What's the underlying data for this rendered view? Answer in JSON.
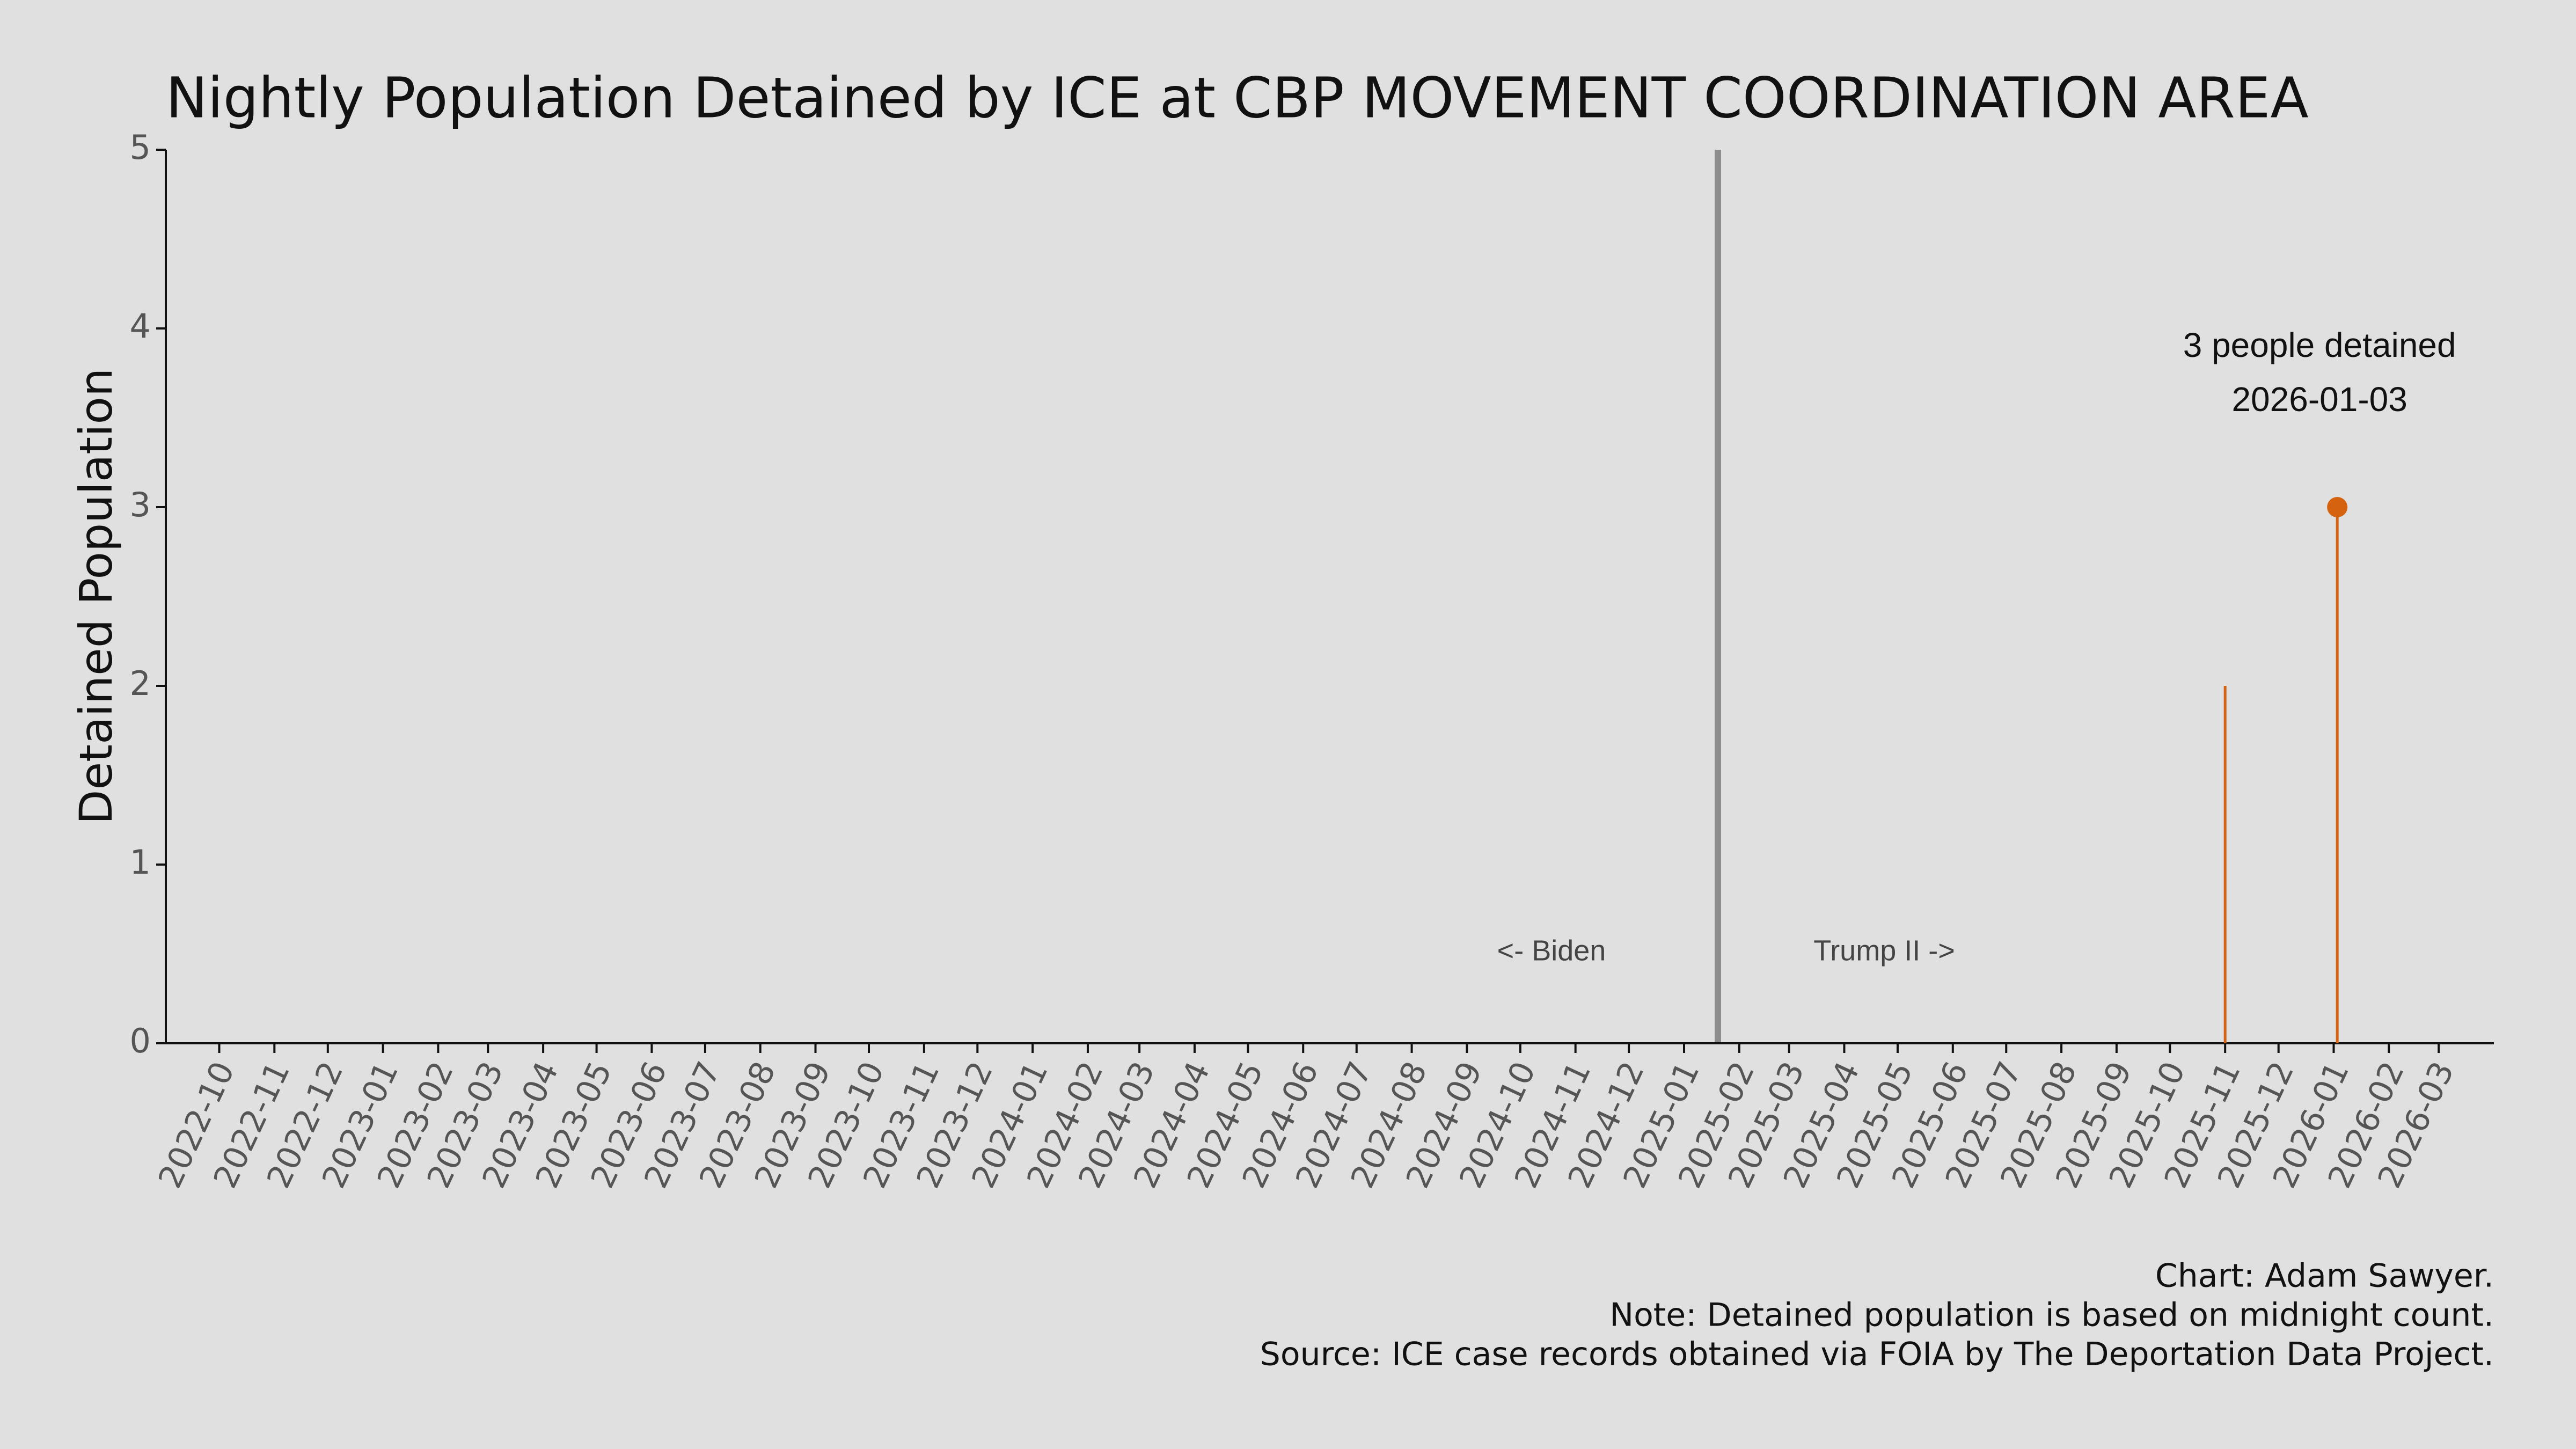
{
  "chart_data": {
    "type": "stem",
    "title": "Nightly Population Detained by ICE at CBP MOVEMENT COORDINATION AREA",
    "y_label": "Detained Population",
    "x": [
      "2025-11",
      "2026-01-03"
    ],
    "values": [
      2,
      3
    ],
    "color": "#d4620f",
    "xlim": [
      "2022-09",
      "2026-04"
    ],
    "xticks": [
      "2022-10",
      "2022-11",
      "2022-12",
      "2023-01",
      "2023-02",
      "2023-03",
      "2023-04",
      "2023-05",
      "2023-06",
      "2023-07",
      "2023-08",
      "2023-09",
      "2023-10",
      "2023-11",
      "2023-12",
      "2024-01",
      "2024-02",
      "2024-03",
      "2024-04",
      "2024-05",
      "2024-06",
      "2024-07",
      "2024-08",
      "2024-09",
      "2024-10",
      "2024-11",
      "2024-12",
      "2025-01",
      "2025-02",
      "2025-03",
      "2025-04",
      "2025-05",
      "2025-06",
      "2025-07",
      "2025-08",
      "2025-09",
      "2025-10",
      "2025-11",
      "2025-12",
      "2026-01",
      "2026-02",
      "2026-03"
    ],
    "ylim": [
      0,
      5
    ],
    "yticks": [
      0,
      1,
      2,
      3,
      4,
      5
    ],
    "reference_line": {
      "x": "2025-01-20",
      "color": "#8c8c8c"
    },
    "era_labels": [
      "<- Biden",
      "Trump II ->"
    ],
    "annotation": {
      "text": "3 people detained",
      "date": "2026-01-03"
    },
    "footer": [
      "Chart: Adam Sawyer.",
      "Note: Detained population is based on midnight count.",
      "Source: ICE case records obtained via FOIA by The Deportation Data Project."
    ]
  }
}
